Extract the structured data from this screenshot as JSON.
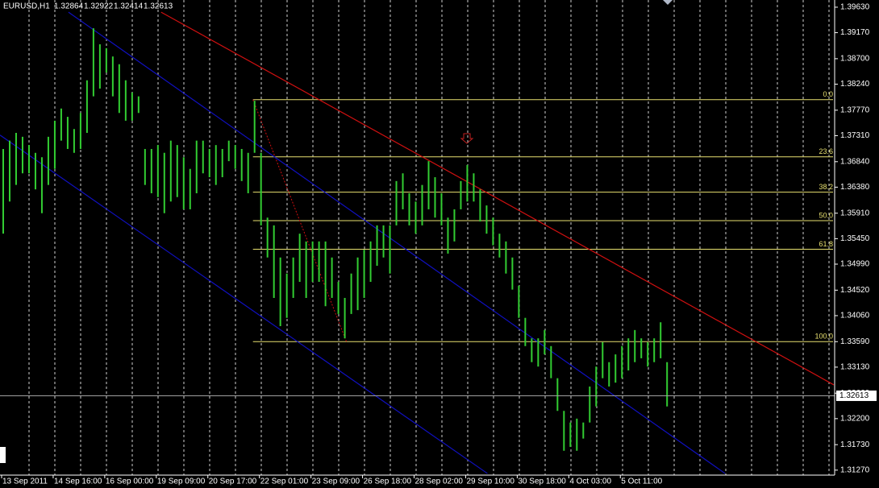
{
  "chart_data": {
    "type": "hl-bars",
    "symbol": "EURUSD,H1",
    "quote": [
      1.32864,
      1.32922,
      1.32414,
      1.32613
    ],
    "color": "#32cd32",
    "current_price": 1.32613,
    "current_price_label": "1.32613",
    "xlim": [
      0,
      517
    ],
    "ylim": [
      1.3118,
      1.3976
    ],
    "xticks": [
      {
        "value": 0,
        "label": "13 Sep 2011"
      },
      {
        "value": 32,
        "label": "14 Sep 16:00"
      },
      {
        "value": 64,
        "label": "16 Sep 00:00"
      },
      {
        "value": 96,
        "label": "19 Sep 09:00"
      },
      {
        "value": 128,
        "label": "20 Sep 17:00"
      },
      {
        "value": 160,
        "label": "22 Sep 01:00"
      },
      {
        "value": 192,
        "label": "23 Sep 09:00"
      },
      {
        "value": 224,
        "label": "26 Sep 18:00"
      },
      {
        "value": 256,
        "label": "28 Sep 02:00"
      },
      {
        "value": 288,
        "label": "29 Sep 10:00"
      },
      {
        "value": 320,
        "label": "30 Sep 18:00"
      },
      {
        "value": 352,
        "label": "4 Oct 03:00"
      },
      {
        "value": 384,
        "label": "5 Oct 11:00"
      }
    ],
    "yticks": [
      {
        "value": 1.3963,
        "label": "1.39630"
      },
      {
        "value": 1.3917,
        "label": "1.39170"
      },
      {
        "value": 1.387,
        "label": "1.38700"
      },
      {
        "value": 1.3824,
        "label": "1.38240"
      },
      {
        "value": 1.3777,
        "label": "1.37770"
      },
      {
        "value": 1.3731,
        "label": "1.37310"
      },
      {
        "value": 1.3684,
        "label": "1.36840"
      },
      {
        "value": 1.3638,
        "label": "1.36380"
      },
      {
        "value": 1.3591,
        "label": "1.35910"
      },
      {
        "value": 1.3545,
        "label": "1.35450"
      },
      {
        "value": 1.3499,
        "label": "1.34990"
      },
      {
        "value": 1.3452,
        "label": "1.34520"
      },
      {
        "value": 1.3406,
        "label": "1.34060"
      },
      {
        "value": 1.3359,
        "label": "1.33590"
      },
      {
        "value": 1.3313,
        "label": "1.33130"
      },
      {
        "value": 1.3266,
        "label": "1.32660"
      },
      {
        "value": 1.322,
        "label": "1.32200"
      },
      {
        "value": 1.3173,
        "label": "1.31730"
      },
      {
        "value": 1.3127,
        "label": "1.31270"
      }
    ],
    "x": [
      1,
      5,
      9,
      13,
      17,
      21,
      25,
      29,
      33,
      37,
      41,
      45,
      49,
      53,
      57,
      61,
      65,
      69,
      73,
      77,
      81,
      85,
      89,
      93,
      97,
      101,
      105,
      109,
      113,
      117,
      121,
      125,
      129,
      133,
      137,
      141,
      145,
      149,
      153,
      157,
      161,
      165,
      169,
      173,
      177,
      181,
      185,
      189,
      193,
      197,
      201,
      205,
      209,
      213,
      217,
      221,
      225,
      229,
      233,
      237,
      241,
      245,
      249,
      253,
      257,
      261,
      265,
      269,
      273,
      277,
      281,
      285,
      289,
      293,
      297,
      301,
      305,
      309,
      313,
      317,
      321,
      325,
      329,
      333,
      337,
      341,
      345,
      349,
      353,
      357,
      361,
      365,
      369,
      373,
      377,
      381,
      385,
      389,
      393,
      397,
      401,
      405,
      409,
      413
    ],
    "high": [
      1.3707,
      1.3722,
      1.3736,
      1.3729,
      1.3714,
      1.37,
      1.3692,
      1.3729,
      1.3758,
      1.378,
      1.3765,
      1.3743,
      1.3772,
      1.3831,
      1.3925,
      1.3896,
      1.3889,
      1.3874,
      1.386,
      1.3831,
      1.3809,
      1.3802,
      1.3707,
      1.3707,
      1.3714,
      1.37,
      1.3722,
      1.3714,
      1.3692,
      1.3671,
      1.3722,
      1.3722,
      1.3707,
      1.3714,
      1.3707,
      1.3722,
      1.3714,
      1.3707,
      1.37,
      1.3794,
      1.37,
      1.3583,
      1.3569,
      1.3511,
      1.3482,
      1.3511,
      1.3554,
      1.354,
      1.354,
      1.354,
      1.354,
      1.3511,
      1.3467,
      1.3438,
      1.3482,
      1.3511,
      1.3525,
      1.354,
      1.3569,
      1.3569,
      1.3569,
      1.3649,
      1.3663,
      1.3627,
      1.3612,
      1.3642,
      1.3685,
      1.3656,
      1.3627,
      1.3583,
      1.3598,
      1.3649,
      1.3678,
      1.3663,
      1.3634,
      1.3605,
      1.3583,
      1.3554,
      1.354,
      1.3511,
      1.346,
      1.3402,
      1.3365,
      1.3365,
      1.338,
      1.3351,
      1.3293,
      1.3234,
      1.3213,
      1.322,
      1.3213,
      1.3278,
      1.3314,
      1.3358,
      1.3322,
      1.3336,
      1.3351,
      1.3365,
      1.338,
      1.3365,
      1.3358,
      1.3365,
      1.3394,
      1.3322
    ],
    "low": [
      1.3554,
      1.3612,
      1.3642,
      1.3663,
      1.3663,
      1.3634,
      1.3591,
      1.3642,
      1.3671,
      1.3722,
      1.3707,
      1.37,
      1.3707,
      1.3736,
      1.3802,
      1.3816,
      1.3845,
      1.3802,
      1.3772,
      1.3758,
      1.3758,
      1.3772,
      1.3642,
      1.3627,
      1.362,
      1.3591,
      1.3612,
      1.362,
      1.3598,
      1.3598,
      1.3627,
      1.3663,
      1.3656,
      1.3642,
      1.3656,
      1.3685,
      1.3671,
      1.3649,
      1.3627,
      1.37,
      1.3569,
      1.3511,
      1.3438,
      1.3387,
      1.3402,
      1.3438,
      1.3467,
      1.3438,
      1.3467,
      1.3467,
      1.3423,
      1.3438,
      1.3409,
      1.3365,
      1.3409,
      1.3416,
      1.3438,
      1.3467,
      1.3496,
      1.3511,
      1.3482,
      1.3569,
      1.3598,
      1.3569,
      1.3554,
      1.3569,
      1.3598,
      1.3583,
      1.3569,
      1.3518,
      1.354,
      1.3598,
      1.3612,
      1.3612,
      1.3576,
      1.3554,
      1.3533,
      1.3511,
      1.3482,
      1.3453,
      1.3402,
      1.3351,
      1.3322,
      1.3314,
      1.3336,
      1.3293,
      1.3234,
      1.3162,
      1.3169,
      1.3162,
      1.3184,
      1.3213,
      1.3242,
      1.3293,
      1.3278,
      1.3285,
      1.3293,
      1.3307,
      1.3322,
      1.3329,
      1.3314,
      1.3322,
      1.3329,
      1.3242
    ],
    "fib": {
      "x_start": 156,
      "x_end": 214,
      "high": 1.3796,
      "low": 1.3359,
      "levels": [
        {
          "value": 0,
          "label": "0.0"
        },
        23.6,
        38.2,
        {
          "value": 50,
          "label": "50.0"
        },
        61.8,
        {
          "value": 100,
          "label": "100.0"
        }
      ]
    },
    "trendlines": [
      {
        "color": "#d01010",
        "x": [
          99,
          516.5
        ],
        "y": [
          1.3954,
          1.3281
        ]
      },
      {
        "color": "#1010c0",
        "x": [
          41.5,
          449
        ],
        "y": [
          1.3954,
          1.3121
        ]
      },
      {
        "color": "#1010c0",
        "x": [
          -1,
          301.5
        ],
        "y": [
          1.3732,
          1.3121
        ]
      }
    ]
  }
}
